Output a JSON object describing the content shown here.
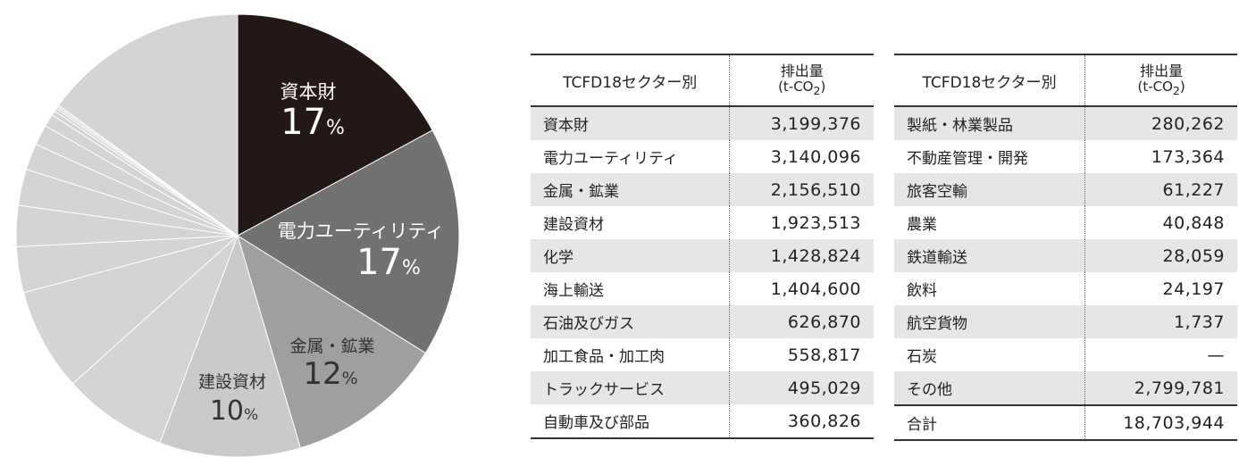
{
  "chart_data": {
    "type": "pie",
    "title": "",
    "start": "top, clockwise",
    "slices": [
      {
        "label": "資本財",
        "value": 3199376,
        "color": "#231815",
        "pct": "17",
        "text_color": "#ffffff"
      },
      {
        "label": "電力ユーティリティ",
        "value": 3140096,
        "color": "#727171",
        "pct": "17",
        "text_color": "#ffffff"
      },
      {
        "label": "金属・鉱業",
        "value": 2156510,
        "color": "#9f9fa0",
        "pct": "12",
        "text_color": "#333333"
      },
      {
        "label": "建設資材",
        "value": 1923513,
        "color": "#c9caca",
        "pct": "10",
        "text_color": "#333333"
      },
      {
        "label": "化学",
        "value": 1428824,
        "color": "#d3d3d4",
        "pct": "",
        "text_color": ""
      },
      {
        "label": "海上輸送",
        "value": 1404600,
        "color": "#d3d3d4",
        "pct": "",
        "text_color": ""
      },
      {
        "label": "石油及びガス",
        "value": 626870,
        "color": "#d3d3d4",
        "pct": "",
        "text_color": ""
      },
      {
        "label": "加工食品・加工肉",
        "value": 558817,
        "color": "#d3d3d4",
        "pct": "",
        "text_color": ""
      },
      {
        "label": "トラックサービス",
        "value": 495029,
        "color": "#d3d3d4",
        "pct": "",
        "text_color": ""
      },
      {
        "label": "自動車及び部品",
        "value": 360826,
        "color": "#d3d3d4",
        "pct": "",
        "text_color": ""
      },
      {
        "label": "製紙・林業製品",
        "value": 280262,
        "color": "#d3d3d4",
        "pct": "",
        "text_color": ""
      },
      {
        "label": "不動産管理・開発",
        "value": 173364,
        "color": "#d3d3d4",
        "pct": "",
        "text_color": ""
      },
      {
        "label": "旅客空輸",
        "value": 61227,
        "color": "#d3d3d4",
        "pct": "",
        "text_color": ""
      },
      {
        "label": "農業",
        "value": 40848,
        "color": "#d3d3d4",
        "pct": "",
        "text_color": ""
      },
      {
        "label": "鉄道輸送",
        "value": 28059,
        "color": "#d3d3d4",
        "pct": "",
        "text_color": ""
      },
      {
        "label": "飲料",
        "value": 24197,
        "color": "#d3d3d4",
        "pct": "",
        "text_color": ""
      },
      {
        "label": "航空貨物",
        "value": 1737,
        "color": "#d3d3d4",
        "pct": "",
        "text_color": ""
      },
      {
        "label": "その他",
        "value": 2799781,
        "color": "#d3d3d4",
        "pct": "",
        "text_color": ""
      }
    ],
    "percent_sign": "%",
    "legend": "none"
  },
  "table": {
    "col_sector": "TCFD18セクター別",
    "col_value_main": "排出量",
    "col_value_unit_pre": "(t-CO",
    "col_value_unit_sub": "2",
    "col_value_unit_post": ")",
    "left_rows": [
      {
        "name": "資本財",
        "value": "3,199,376"
      },
      {
        "name": "電力ユーティリティ",
        "value": "3,140,096"
      },
      {
        "name": "金属・鉱業",
        "value": "2,156,510"
      },
      {
        "name": "建設資材",
        "value": "1,923,513"
      },
      {
        "name": "化学",
        "value": "1,428,824"
      },
      {
        "name": "海上輸送",
        "value": "1,404,600"
      },
      {
        "name": "石油及びガス",
        "value": "626,870"
      },
      {
        "name": "加工食品・加工肉",
        "value": "558,817"
      },
      {
        "name": "トラックサービス",
        "value": "495,029"
      },
      {
        "name": "自動車及び部品",
        "value": "360,826"
      }
    ],
    "right_rows": [
      {
        "name": "製紙・林業製品",
        "value": "280,262"
      },
      {
        "name": "不動産管理・開発",
        "value": "173,364"
      },
      {
        "name": "旅客空輸",
        "value": "61,227"
      },
      {
        "name": "農業",
        "value": "40,848"
      },
      {
        "name": "鉄道輸送",
        "value": "28,059"
      },
      {
        "name": "飲料",
        "value": "24,197"
      },
      {
        "name": "航空貨物",
        "value": "1,737"
      },
      {
        "name": "石炭",
        "value": "—"
      },
      {
        "name": "その他",
        "value": "2,799,781"
      }
    ],
    "total": {
      "name": "合計",
      "value": "18,703,944"
    }
  }
}
